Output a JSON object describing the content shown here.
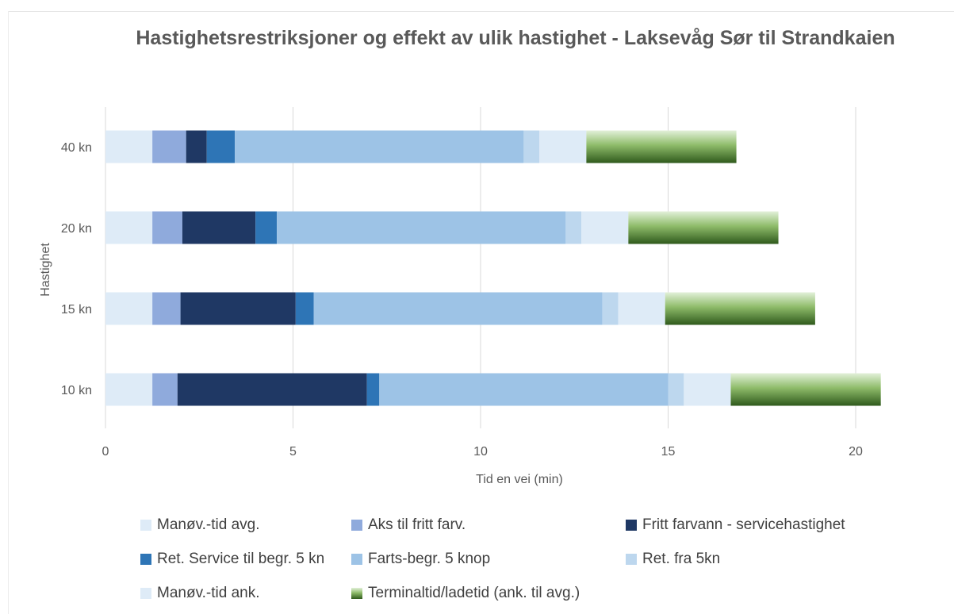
{
  "chart_data": {
    "type": "bar",
    "orientation": "horizontal",
    "stacked": true,
    "title": "Hastighetsrestriksjoner og effekt av ulik hastighet - Laksevåg Sør til Strandkaien",
    "xlabel": "Tid en vei (min)",
    "ylabel": "Hastighet",
    "xlim": [
      0,
      21
    ],
    "xticks": [
      0,
      5,
      10,
      15,
      20
    ],
    "grid": "vertical",
    "legend_position": "bottom",
    "categories": [
      "10 kn",
      "15 kn",
      "20 kn",
      "40 kn"
    ],
    "series": [
      {
        "name": "Manøv.-tid avg.",
        "color": "#DEEBF7",
        "values": [
          1.25,
          1.25,
          1.25,
          1.25
        ]
      },
      {
        "name": "Aks til fritt farv.",
        "color": "#8FAADC",
        "values": [
          0.67,
          0.75,
          0.8,
          0.9
        ]
      },
      {
        "name": "Fritt farvann - servicehastighet",
        "color": "#1F3864",
        "values": [
          5.05,
          3.07,
          1.95,
          0.55
        ]
      },
      {
        "name": "Ret. Service til begr. 5 kn",
        "color": "#2E75B6",
        "values": [
          0.33,
          0.48,
          0.57,
          0.75
        ]
      },
      {
        "name": "Farts-begr. 5 knop",
        "color": "#9DC3E6",
        "values": [
          7.7,
          7.7,
          7.7,
          7.7
        ]
      },
      {
        "name": "Ret. fra 5kn",
        "color": "#BDD7EE",
        "values": [
          0.42,
          0.42,
          0.42,
          0.42
        ]
      },
      {
        "name": "Manøv.-tid ank.",
        "color": "#DEEBF7",
        "values": [
          1.25,
          1.25,
          1.25,
          1.25
        ]
      },
      {
        "name": "Terminaltid/ladetid (ank. til avg.)",
        "color": "#548235",
        "gradient": true,
        "values": [
          4.0,
          4.0,
          4.0,
          4.0
        ]
      }
    ]
  }
}
